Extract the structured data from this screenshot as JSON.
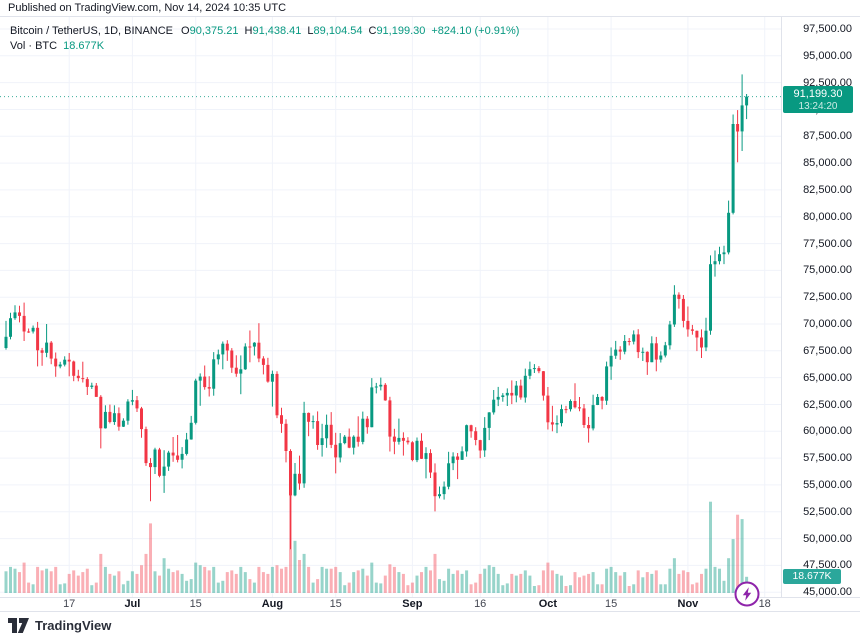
{
  "header": {
    "published": "Published on TradingView.com, Nov 14, 2024 10:35 UTC"
  },
  "legend": {
    "symbol": "Bitcoin / TetherUS, 1D, BINANCE",
    "ohlc": [
      {
        "k": "O",
        "v": "90,375.21"
      },
      {
        "k": "H",
        "v": "91,438.41"
      },
      {
        "k": "L",
        "v": "89,104.54"
      },
      {
        "k": "C",
        "v": "91,199.30"
      }
    ],
    "change": "+824.10 (+0.91%)",
    "vol_label": "Vol · BTC",
    "vol_value": "18.677K"
  },
  "price_badge": {
    "price": "91,199.30",
    "countdown": "13:24:20"
  },
  "vol_badge": {
    "value": "18.677K"
  },
  "footer": {
    "brand": "TradingView"
  },
  "colors": {
    "up": "#089981",
    "down": "#f23645",
    "vol_up": "rgba(8,153,129,0.42)",
    "vol_down": "rgba(242,54,69,0.40)",
    "grid": "#f0f3fa",
    "border": "#e0e3eb",
    "text": "#131722",
    "accent_badge": "#089981",
    "flash_icon": "#8e24aa"
  },
  "price_axis": {
    "min": 45000,
    "max": 97500,
    "step": 2500,
    "labels": [
      {
        "value": 97500,
        "label": "97,500.00"
      },
      {
        "value": 95000,
        "label": "95,000.00"
      },
      {
        "value": 92500,
        "label": "92,500.00"
      },
      {
        "value": 90000,
        "label": "90,000.00"
      },
      {
        "value": 87500,
        "label": "87,500.00"
      },
      {
        "value": 85000,
        "label": "85,000.00"
      },
      {
        "value": 82500,
        "label": "82,500.00"
      },
      {
        "value": 80000,
        "label": "80,000.00"
      },
      {
        "value": 77500,
        "label": "77,500.00"
      },
      {
        "value": 75000,
        "label": "75,000.00"
      },
      {
        "value": 72500,
        "label": "72,500.00"
      },
      {
        "value": 70000,
        "label": "70,000.00"
      },
      {
        "value": 67500,
        "label": "67,500.00"
      },
      {
        "value": 65000,
        "label": "65,000.00"
      },
      {
        "value": 62500,
        "label": "62,500.00"
      },
      {
        "value": 60000,
        "label": "60,000.00"
      },
      {
        "value": 57500,
        "label": "57,500.00"
      },
      {
        "value": 55000,
        "label": "55,000.00"
      },
      {
        "value": 52500,
        "label": "52,500.00"
      },
      {
        "value": 50000,
        "label": "50,000.00"
      },
      {
        "value": 47500,
        "label": "47,500.00"
      },
      {
        "value": 45000,
        "label": "45,000.00"
      }
    ]
  },
  "time_axis": {
    "ticks": [
      {
        "label": "17",
        "day": 14,
        "major": false
      },
      {
        "label": "Jul",
        "day": 28,
        "major": true
      },
      {
        "label": "15",
        "day": 42,
        "major": false
      },
      {
        "label": "Aug",
        "day": 59,
        "major": true
      },
      {
        "label": "15",
        "day": 73,
        "major": false
      },
      {
        "label": "Sep",
        "day": 90,
        "major": true
      },
      {
        "label": "16",
        "day": 105,
        "major": false
      },
      {
        "label": "Oct",
        "day": 120,
        "major": true
      },
      {
        "label": "15",
        "day": 134,
        "major": false
      },
      {
        "label": "Nov",
        "day": 151,
        "major": true
      },
      {
        "label": "18",
        "day": 168,
        "major": false
      }
    ]
  },
  "chart_data": {
    "type": "candlestick",
    "title": "Bitcoin / TetherUS, 1D, BINANCE",
    "interval": "1D",
    "last_price": 91199.3,
    "last_change": "+824.10 (+0.91%)",
    "current_volume_k": 18.677,
    "price_range": [
      45000,
      97500
    ],
    "grid": true,
    "ohlcv_note": "arrays are [open, high, low, close, volume_in_K_BTC], daily candles ending Nov 14 2024",
    "candles": [
      [
        67760,
        70288,
        67618,
        68804,
        25
      ],
      [
        68804,
        71047,
        68567,
        70537,
        30
      ],
      [
        70537,
        71758,
        70383,
        71082,
        28
      ],
      [
        71082,
        71700,
        70150,
        70760,
        24
      ],
      [
        70760,
        71997,
        68420,
        69305,
        35
      ],
      [
        69305,
        69582,
        69168,
        69300,
        12
      ],
      [
        69300,
        69858,
        69119,
        69648,
        10
      ],
      [
        69648,
        70195,
        66051,
        67553,
        30
      ],
      [
        67553,
        67770,
        66101,
        67316,
        26
      ],
      [
        67316,
        70000,
        66905,
        68263,
        28
      ],
      [
        68263,
        68420,
        66255,
        66773,
        25
      ],
      [
        66773,
        67340,
        65078,
        66043,
        30
      ],
      [
        66043,
        66478,
        65871,
        66221,
        10
      ],
      [
        66221,
        66992,
        66046,
        66676,
        11
      ],
      [
        66676,
        67298,
        65130,
        66504,
        22
      ],
      [
        66504,
        66588,
        64666,
        65175,
        26
      ],
      [
        65175,
        65727,
        64660,
        64960,
        20
      ],
      [
        64960,
        66482,
        64547,
        64869,
        24
      ],
      [
        64869,
        65050,
        63379,
        64143,
        28
      ],
      [
        64143,
        64526,
        63943,
        64262,
        9
      ],
      [
        64262,
        64500,
        63211,
        63212,
        12
      ],
      [
        63212,
        63369,
        58402,
        60277,
        45
      ],
      [
        60277,
        62420,
        60252,
        61804,
        30
      ],
      [
        61804,
        62487,
        60731,
        60865,
        22
      ],
      [
        60865,
        62424,
        60595,
        61684,
        20
      ],
      [
        61684,
        62224,
        60056,
        60427,
        25
      ],
      [
        60427,
        61207,
        60395,
        60986,
        10
      ],
      [
        60986,
        62994,
        60616,
        62772,
        14
      ],
      [
        62772,
        63861,
        62432,
        62900,
        25
      ],
      [
        62900,
        63288,
        61801,
        62132,
        22
      ],
      [
        62132,
        62275,
        59400,
        60207,
        32
      ],
      [
        60207,
        60440,
        56771,
        57042,
        45
      ],
      [
        57042,
        57500,
        53485,
        56662,
        80
      ],
      [
        56662,
        58472,
        56018,
        58303,
        25
      ],
      [
        58303,
        58449,
        55724,
        55849,
        20
      ],
      [
        55849,
        58236,
        54260,
        56705,
        40
      ],
      [
        56705,
        58179,
        56308,
        58009,
        28
      ],
      [
        58009,
        59470,
        57157,
        57742,
        24
      ],
      [
        57742,
        59650,
        57101,
        57344,
        26
      ],
      [
        57344,
        58530,
        56542,
        57889,
        22
      ],
      [
        57889,
        59850,
        57741,
        59231,
        14
      ],
      [
        59231,
        61430,
        59211,
        60787,
        16
      ],
      [
        60787,
        64900,
        60633,
        64724,
        35
      ],
      [
        64724,
        65396,
        62374,
        65097,
        32
      ],
      [
        65097,
        66129,
        63873,
        64118,
        30
      ],
      [
        64118,
        65134,
        63239,
        63974,
        26
      ],
      [
        63974,
        67385,
        63319,
        66710,
        30
      ],
      [
        66710,
        67612,
        66222,
        67164,
        12
      ],
      [
        67164,
        68366,
        65777,
        68165,
        14
      ],
      [
        68165,
        68489,
        66559,
        67533,
        24
      ],
      [
        67533,
        67750,
        65441,
        65927,
        26
      ],
      [
        65927,
        67087,
        65075,
        65372,
        22
      ],
      [
        65372,
        67070,
        63456,
        65777,
        30
      ],
      [
        65777,
        68200,
        65723,
        67907,
        24
      ],
      [
        67907,
        69399,
        66428,
        67896,
        16
      ],
      [
        67896,
        68318,
        67066,
        68255,
        12
      ],
      [
        68255,
        70079,
        66437,
        66784,
        30
      ],
      [
        66784,
        67000,
        65302,
        66188,
        24
      ],
      [
        66188,
        66849,
        64530,
        64628,
        22
      ],
      [
        64628,
        65659,
        62302,
        65354,
        30
      ],
      [
        65354,
        65596,
        61231,
        61498,
        32
      ],
      [
        61498,
        62198,
        59850,
        60697,
        28
      ],
      [
        60697,
        61117,
        57101,
        58161,
        30
      ],
      [
        58161,
        58320,
        49000,
        54018,
        115
      ],
      [
        54018,
        57047,
        53950,
        56034,
        60
      ],
      [
        56034,
        57736,
        54559,
        55134,
        38
      ],
      [
        55134,
        62745,
        54730,
        61710,
        45
      ],
      [
        61710,
        61748,
        59546,
        60880,
        30
      ],
      [
        60880,
        61470,
        60242,
        60945,
        12
      ],
      [
        60945,
        61858,
        58278,
        58719,
        16
      ],
      [
        58719,
        60700,
        57642,
        59354,
        30
      ],
      [
        59354,
        61560,
        58456,
        60609,
        28
      ],
      [
        60609,
        61791,
        58436,
        58737,
        28
      ],
      [
        58737,
        59857,
        56078,
        57560,
        30
      ],
      [
        57560,
        59827,
        57097,
        58894,
        24
      ],
      [
        58894,
        59650,
        58786,
        59493,
        9
      ],
      [
        59493,
        60256,
        58427,
        58464,
        12
      ],
      [
        58464,
        59622,
        57840,
        59493,
        24
      ],
      [
        59493,
        61400,
        58575,
        59013,
        26
      ],
      [
        59013,
        61833,
        58788,
        61175,
        28
      ],
      [
        61175,
        61415,
        59772,
        60382,
        20
      ],
      [
        60382,
        64955,
        60372,
        64094,
        35
      ],
      [
        64094,
        64513,
        63531,
        64178,
        12
      ],
      [
        64178,
        65000,
        63807,
        64333,
        11
      ],
      [
        64333,
        64489,
        62839,
        62880,
        20
      ],
      [
        62880,
        63212,
        58116,
        59504,
        33
      ],
      [
        59504,
        60235,
        57860,
        59027,
        30
      ],
      [
        59027,
        61184,
        58758,
        59388,
        24
      ],
      [
        59388,
        59910,
        57734,
        59119,
        22
      ],
      [
        59119,
        59449,
        58768,
        58969,
        9
      ],
      [
        58969,
        59076,
        57201,
        57315,
        12
      ],
      [
        57315,
        59425,
        57128,
        59112,
        20
      ],
      [
        59112,
        59809,
        57415,
        57431,
        24
      ],
      [
        57431,
        58519,
        55606,
        57971,
        30
      ],
      [
        57971,
        58325,
        55643,
        56160,
        26
      ],
      [
        56160,
        57008,
        52530,
        53948,
        45
      ],
      [
        53948,
        54850,
        53745,
        54139,
        16
      ],
      [
        54139,
        55318,
        53629,
        54841,
        14
      ],
      [
        54841,
        58088,
        54591,
        57019,
        28
      ],
      [
        57019,
        58041,
        56386,
        57648,
        22
      ],
      [
        57648,
        57973,
        55545,
        57343,
        26
      ],
      [
        57343,
        58588,
        57324,
        58132,
        22
      ],
      [
        58132,
        60625,
        57632,
        60571,
        26
      ],
      [
        60571,
        60610,
        59400,
        60005,
        10
      ],
      [
        60005,
        60384,
        58691,
        59182,
        12
      ],
      [
        59182,
        59210,
        57493,
        58213,
        22
      ],
      [
        58213,
        61320,
        57610,
        60313,
        28
      ],
      [
        60313,
        61786,
        59174,
        61759,
        32
      ],
      [
        61759,
        63850,
        61555,
        62947,
        30
      ],
      [
        62947,
        64133,
        62350,
        63201,
        22
      ],
      [
        63201,
        63560,
        62758,
        63348,
        9
      ],
      [
        63348,
        64000,
        62357,
        63579,
        11
      ],
      [
        63579,
        64745,
        62538,
        63339,
        22
      ],
      [
        63339,
        64688,
        62700,
        64262,
        20
      ],
      [
        64262,
        64822,
        62947,
        63150,
        22
      ],
      [
        63150,
        65839,
        62670,
        65173,
        26
      ],
      [
        65173,
        66498,
        64855,
        65790,
        20
      ],
      [
        65790,
        66263,
        65437,
        65887,
        8
      ],
      [
        65887,
        66076,
        65416,
        65602,
        9
      ],
      [
        65602,
        65618,
        62856,
        63329,
        26
      ],
      [
        63329,
        64130,
        60164,
        60837,
        35
      ],
      [
        60837,
        62375,
        60000,
        60632,
        26
      ],
      [
        60632,
        61477,
        59828,
        60759,
        22
      ],
      [
        60759,
        62485,
        60459,
        62067,
        20
      ],
      [
        62067,
        62370,
        61689,
        62057,
        8
      ],
      [
        62057,
        62975,
        61848,
        62819,
        9
      ],
      [
        62819,
        64478,
        62128,
        62236,
        24
      ],
      [
        62236,
        63200,
        61860,
        62131,
        18
      ],
      [
        62131,
        62541,
        60315,
        60582,
        20
      ],
      [
        60582,
        61342,
        58946,
        60274,
        22
      ],
      [
        60274,
        63413,
        60087,
        62445,
        24
      ],
      [
        62445,
        63478,
        62440,
        63193,
        10
      ],
      [
        63193,
        63280,
        62050,
        62851,
        10
      ],
      [
        62851,
        66500,
        62458,
        66046,
        28
      ],
      [
        66046,
        67820,
        64800,
        67041,
        30
      ],
      [
        67041,
        68424,
        66750,
        67612,
        24
      ],
      [
        67612,
        67935,
        66666,
        67421,
        20
      ],
      [
        67421,
        68978,
        67174,
        68418,
        24
      ],
      [
        68418,
        68693,
        68010,
        68362,
        8
      ],
      [
        68362,
        69400,
        68100,
        69031,
        10
      ],
      [
        69031,
        69519,
        66824,
        67377,
        26
      ],
      [
        67377,
        67800,
        66550,
        67411,
        18
      ],
      [
        67411,
        67460,
        65260,
        66440,
        24
      ],
      [
        66440,
        68850,
        66440,
        68198,
        22
      ],
      [
        68198,
        68800,
        65596,
        66676,
        26
      ],
      [
        66676,
        67448,
        66410,
        67062,
        10
      ],
      [
        67062,
        68330,
        66890,
        68015,
        10
      ],
      [
        68015,
        70288,
        67620,
        69958,
        28
      ],
      [
        69958,
        73620,
        69729,
        72736,
        40
      ],
      [
        72736,
        72959,
        71436,
        72344,
        22
      ],
      [
        72344,
        72700,
        69685,
        70292,
        26
      ],
      [
        70292,
        71632,
        68820,
        69496,
        24
      ],
      [
        69496,
        69914,
        69000,
        69364,
        10
      ],
      [
        69364,
        69391,
        67478,
        68741,
        12
      ],
      [
        68741,
        69500,
        66835,
        67811,
        22
      ],
      [
        67811,
        70577,
        67476,
        69372,
        28
      ],
      [
        69372,
        76400,
        69000,
        75571,
        105
      ],
      [
        75571,
        76849,
        74416,
        75857,
        30
      ],
      [
        75857,
        77199,
        75555,
        76509,
        28
      ],
      [
        76509,
        77287,
        75588,
        76677,
        14
      ],
      [
        76677,
        81500,
        76492,
        80370,
        40
      ],
      [
        80370,
        89530,
        80216,
        88647,
        62
      ],
      [
        88647,
        89940,
        85072,
        87952,
        90
      ],
      [
        87952,
        93265,
        86127,
        90375,
        85
      ],
      [
        90375.21,
        91438.41,
        89104.54,
        91199.3,
        18.677
      ]
    ]
  }
}
